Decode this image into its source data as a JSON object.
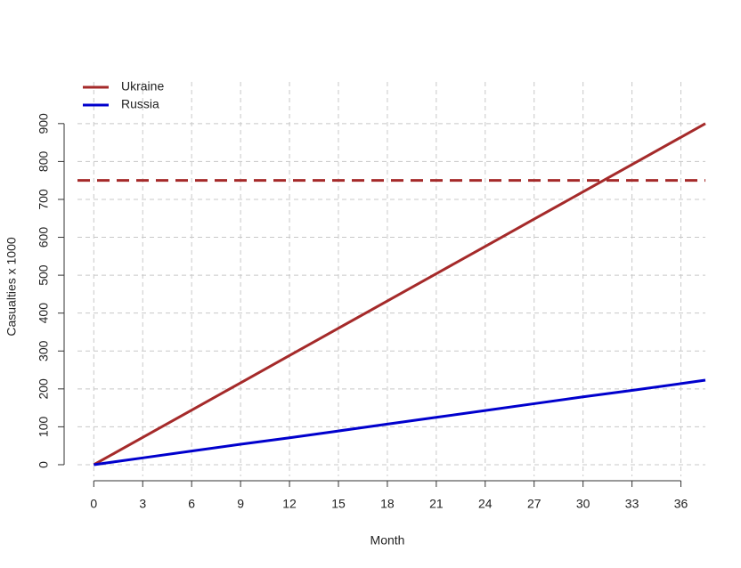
{
  "chart_data": {
    "type": "line",
    "x_label": "Month",
    "y_label": "Casualties x 1000",
    "x": [
      0,
      3,
      6,
      9,
      12,
      15,
      18,
      21,
      24,
      27,
      30,
      33,
      36,
      37.5
    ],
    "series": [
      {
        "name": "Ukraine",
        "color": "#a52a2a",
        "values": [
          0,
          72,
          144,
          216,
          288,
          360,
          432,
          504,
          576,
          648,
          720,
          792,
          864,
          900
        ]
      },
      {
        "name": "Russia",
        "color": "#0000cd",
        "values": [
          0,
          18,
          36,
          54,
          71,
          89,
          107,
          125,
          143,
          161,
          179,
          196,
          214,
          223
        ]
      }
    ],
    "hline": {
      "value": 750,
      "color": "#a52a2a"
    },
    "xlim": [
      -1,
      37.5
    ],
    "ylim": [
      -40,
      1010
    ],
    "xticks": [
      0,
      3,
      6,
      9,
      12,
      15,
      18,
      21,
      24,
      27,
      30,
      33,
      36
    ],
    "yticks": [
      0,
      100,
      200,
      300,
      400,
      500,
      600,
      700,
      800,
      900
    ],
    "grid": true,
    "legend": "top-left"
  }
}
